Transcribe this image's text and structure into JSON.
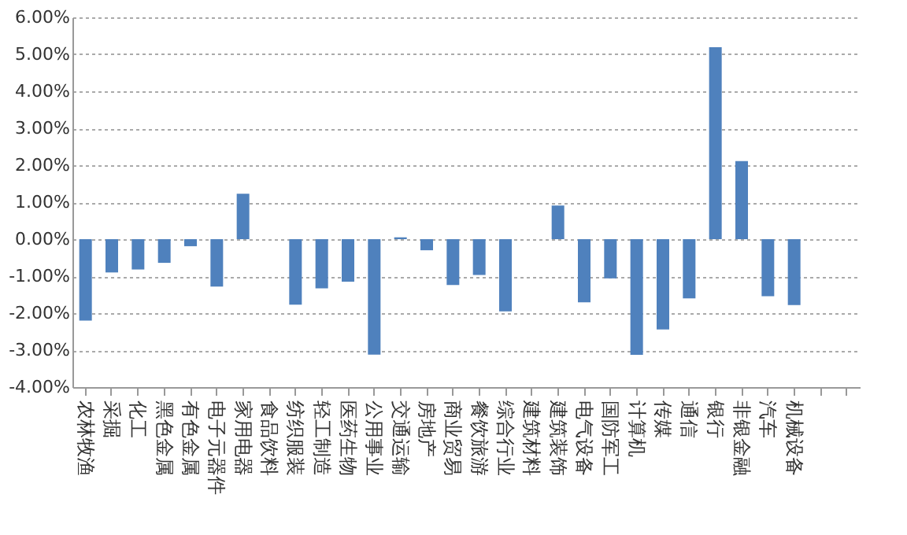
{
  "chart_data": {
    "type": "bar",
    "categories": [
      "农林牧渔",
      "采掘",
      "化工",
      "黑色金属",
      "有色金属",
      "电子元器件",
      "家用电器",
      "食品饮料",
      "纺织服装",
      "轻工制造",
      "医药生物",
      "公用事业",
      "交通运输",
      "房地产",
      "商业贸易",
      "餐饮旅游",
      "综合行业",
      "建筑材料",
      "建筑装饰",
      "电气设备",
      "国防军工",
      "计算机",
      "传媒",
      "通信",
      "银行",
      "非银金融",
      "汽车",
      "机械设备",
      null,
      null
    ],
    "values": [
      -2.2,
      -0.9,
      -0.82,
      -0.64,
      -0.19,
      -1.28,
      1.23,
      null,
      -1.77,
      -1.33,
      -1.15,
      -3.12,
      0.05,
      -0.3,
      -1.24,
      -0.97,
      -1.95,
      0,
      0.91,
      -1.71,
      -1.06,
      -3.13,
      -2.44,
      -1.6,
      5.19,
      2.11,
      -1.54,
      -1.78,
      null,
      null
    ],
    "color": "#4f81bd",
    "ylim": [
      -4,
      6
    ],
    "yticks": [
      {
        "value": -4,
        "label": "-4.00%"
      },
      {
        "value": -3,
        "label": "-3.00%"
      },
      {
        "value": -2,
        "label": "-2.00%"
      },
      {
        "value": -1,
        "label": "-1.00%"
      },
      {
        "value": 0,
        "label": "0.00%"
      },
      {
        "value": 1,
        "label": "1.00%"
      },
      {
        "value": 2,
        "label": "2.00%"
      },
      {
        "value": 3,
        "label": "3.00%"
      },
      {
        "value": 4,
        "label": "4.00%"
      },
      {
        "value": 5,
        "label": "5.00%"
      },
      {
        "value": 6,
        "label": "6.00%"
      }
    ],
    "grid": "y"
  }
}
